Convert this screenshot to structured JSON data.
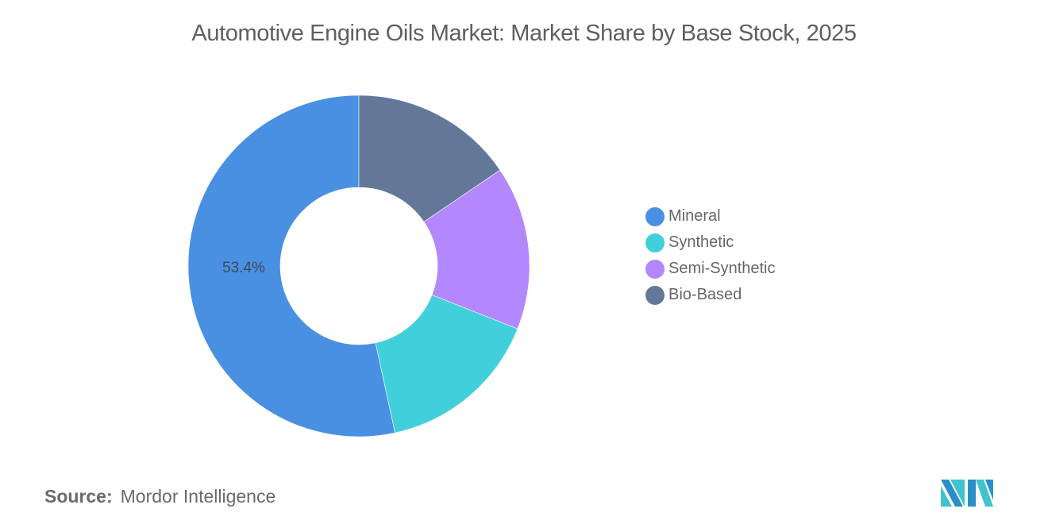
{
  "chart_data": {
    "type": "pie",
    "variant": "donut",
    "title": "Automotive Engine Oils Market: Market Share by Base Stock, 2025",
    "categories": [
      "Mineral",
      "Synthetic",
      "Semi-Synthetic",
      "Bio-Based"
    ],
    "values": [
      53.4,
      15.6,
      15.5,
      15.5
    ],
    "colors": [
      "#4A90E2",
      "#41D0DB",
      "#B388FF",
      "#637899"
    ],
    "data_labels": [
      {
        "category": "Mineral",
        "text": "53.4%"
      }
    ],
    "legend_position": "right",
    "start_angle": "top",
    "direction": "counterclockwise",
    "unit": "%"
  },
  "header": {
    "title": "Automotive Engine Oils Market: Market Share by Base Stock, 2025"
  },
  "legend": {
    "items": [
      {
        "label": "Mineral",
        "color": "#4A90E2"
      },
      {
        "label": "Synthetic",
        "color": "#41D0DB"
      },
      {
        "label": "Semi-Synthetic",
        "color": "#B388FF"
      },
      {
        "label": "Bio-Based",
        "color": "#637899"
      }
    ]
  },
  "labels": {
    "mineral": "53.4%"
  },
  "footer": {
    "source_key": "Source:",
    "source_value": "Mordor Intelligence",
    "logo": "mordor-intelligence-logo"
  }
}
